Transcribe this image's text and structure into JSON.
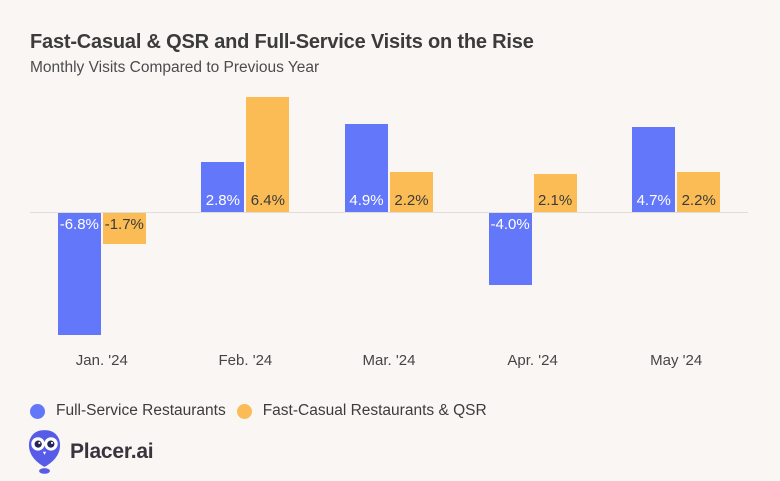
{
  "header": {
    "title": "Fast-Casual & QSR and Full-Service Visits on the Rise",
    "subtitle": "Monthly Visits Compared to Previous Year"
  },
  "chart_data": {
    "type": "bar",
    "title": "Fast-Casual & QSR and Full-Service Visits on the Rise",
    "subtitle": "Monthly Visits Compared to Previous Year",
    "categories": [
      "Jan. '24",
      "Feb. '24",
      "Mar. '24",
      "Apr. '24",
      "May '24"
    ],
    "series": [
      {
        "name": "Full-Service Restaurants",
        "color": "#6377FA",
        "label_color": "#FFFFFF",
        "values": [
          -6.8,
          2.8,
          4.9,
          -4.0,
          4.7
        ],
        "labels": [
          "-6.8%",
          "2.8%",
          "4.9%",
          "-4.0%",
          "4.7%"
        ]
      },
      {
        "name": "Fast-Casual Restaurants & QSR",
        "color": "#FBBC55",
        "label_color": "#3B3B3B",
        "values": [
          -1.7,
          6.4,
          2.2,
          2.1,
          2.2
        ],
        "labels": [
          "-1.7%",
          "6.4%",
          "2.2%",
          "2.1%",
          "2.2%"
        ]
      }
    ],
    "value_format": "percent",
    "ylabel": "",
    "xlabel": "",
    "ylim": [
      -7.5,
      7.5
    ],
    "baseline": 0,
    "grid": false,
    "y_axis_visible": false,
    "legend_position": "bottom-left"
  },
  "colors": {
    "background": "#FAF6F4",
    "axis_line": "#E2DDDA",
    "brand_blue": "#575CE8"
  },
  "footer": {
    "logo_text": "Placer.ai",
    "logo_icon": "placer-owl-pin-icon"
  }
}
